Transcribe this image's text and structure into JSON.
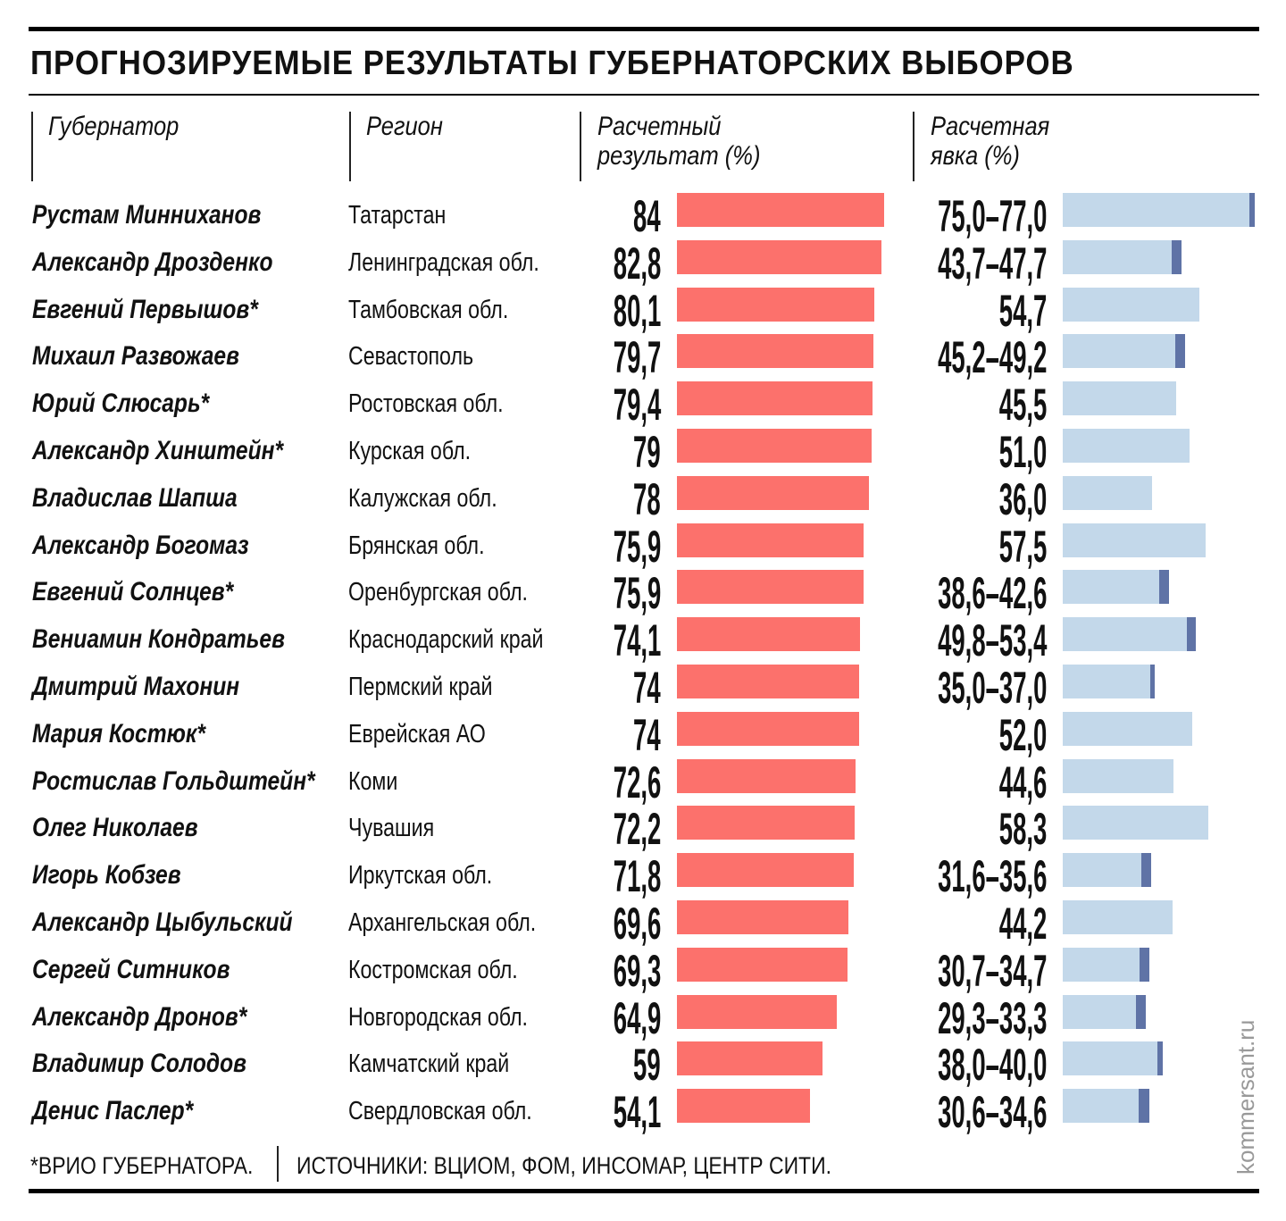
{
  "title": "ПРОГНОЗИРУЕМЫЕ РЕЗУЛЬТАТЫ ГУБЕРНАТОРСКИХ ВЫБОРОВ",
  "headers": {
    "governor": "Губернатор",
    "region": "Регион",
    "result": "Расчетный\nрезультат (%)",
    "turnout": "Расчетная\nявка (%)"
  },
  "footnote": "*ВРИО ГУБЕРНАТОРА.",
  "sources": "ИСТОЧНИКИ: ВЦИОМ, ФОМ, ИНСОМАР, ЦЕНТР СИТИ.",
  "brand": "kommersant.ru",
  "colors": {
    "result": "#fc716c",
    "turnout": "#c3d8ea",
    "turnout_range": "#5f73a6"
  },
  "chart_data": {
    "type": "bar",
    "title": "ПРОГНОЗИРУЕМЫЕ РЕЗУЛЬТАТЫ ГУБЕРНАТОРСКИХ ВЫБОРОВ",
    "rows": [
      {
        "name": "Рустам Минниханов",
        "region": "Татарстан",
        "result": 84,
        "result_label": "84",
        "turnout": [
          75.0,
          77.0
        ],
        "turnout_label": "75,0–77,0"
      },
      {
        "name": "Александр Дрозденко",
        "region": "Ленинградская обл.",
        "result": 82.8,
        "result_label": "82,8",
        "turnout": [
          43.7,
          47.7
        ],
        "turnout_label": "43,7–47,7"
      },
      {
        "name": "Евгений Первышов*",
        "region": "Тамбовская обл.",
        "result": 80.1,
        "result_label": "80,1",
        "turnout": [
          54.7
        ],
        "turnout_label": "54,7"
      },
      {
        "name": "Михаил Развожаев",
        "region": "Севастополь",
        "result": 79.7,
        "result_label": "79,7",
        "turnout": [
          45.2,
          49.2
        ],
        "turnout_label": "45,2–49,2"
      },
      {
        "name": "Юрий Слюсарь*",
        "region": "Ростовская обл.",
        "result": 79.4,
        "result_label": "79,4",
        "turnout": [
          45.5
        ],
        "turnout_label": "45,5"
      },
      {
        "name": "Александр Хинштейн*",
        "region": "Курская обл.",
        "result": 79,
        "result_label": "79",
        "turnout": [
          51.0
        ],
        "turnout_label": "51,0"
      },
      {
        "name": "Владислав Шапша",
        "region": "Калужская обл.",
        "result": 78,
        "result_label": "78",
        "turnout": [
          36.0
        ],
        "turnout_label": "36,0"
      },
      {
        "name": "Александр Богомаз",
        "region": "Брянская обл.",
        "result": 75.9,
        "result_label": "75,9",
        "turnout": [
          57.5
        ],
        "turnout_label": "57,5"
      },
      {
        "name": "Евгений Солнцев*",
        "region": "Оренбургская обл.",
        "result": 75.9,
        "result_label": "75,9",
        "turnout": [
          38.6,
          42.6
        ],
        "turnout_label": "38,6–42,6"
      },
      {
        "name": "Вениамин Кондратьев",
        "region": "Краснодарский край",
        "result": 74.1,
        "result_label": "74,1",
        "turnout": [
          49.8,
          53.4
        ],
        "turnout_label": "49,8–53,4"
      },
      {
        "name": "Дмитрий Махонин",
        "region": "Пермский край",
        "result": 74,
        "result_label": "74",
        "turnout": [
          35.0,
          37.0
        ],
        "turnout_label": "35,0–37,0"
      },
      {
        "name": "Мария Костюк*",
        "region": "Еврейская АО",
        "result": 74,
        "result_label": "74",
        "turnout": [
          52.0
        ],
        "turnout_label": "52,0"
      },
      {
        "name": "Ростислав Гольдштейн*",
        "region": "Коми",
        "result": 72.6,
        "result_label": "72,6",
        "turnout": [
          44.6
        ],
        "turnout_label": "44,6"
      },
      {
        "name": "Олег Николаев",
        "region": "Чувашия",
        "result": 72.2,
        "result_label": "72,2",
        "turnout": [
          58.3
        ],
        "turnout_label": "58,3"
      },
      {
        "name": "Игорь Кобзев",
        "region": "Иркутская обл.",
        "result": 71.8,
        "result_label": "71,8",
        "turnout": [
          31.6,
          35.6
        ],
        "turnout_label": "31,6–35,6"
      },
      {
        "name": "Александр Цыбульский",
        "region": "Архангельская обл.",
        "result": 69.6,
        "result_label": "69,6",
        "turnout": [
          44.2
        ],
        "turnout_label": "44,2"
      },
      {
        "name": "Сергей Ситников",
        "region": "Костромская обл.",
        "result": 69.3,
        "result_label": "69,3",
        "turnout": [
          30.7,
          34.7
        ],
        "turnout_label": "30,7–34,7"
      },
      {
        "name": "Александр Дронов*",
        "region": "Новгородская обл.",
        "result": 64.9,
        "result_label": "64,9",
        "turnout": [
          29.3,
          33.3
        ],
        "turnout_label": "29,3–33,3"
      },
      {
        "name": "Владимир Солодов",
        "region": "Камчатский край",
        "result": 59,
        "result_label": "59",
        "turnout": [
          38.0,
          40.0
        ],
        "turnout_label": "38,0–40,0"
      },
      {
        "name": "Денис Паслер*",
        "region": "Свердловская обл.",
        "result": 54.1,
        "result_label": "54,1",
        "turnout": [
          30.6,
          34.6
        ],
        "turnout_label": "30,6–34,6"
      }
    ]
  }
}
